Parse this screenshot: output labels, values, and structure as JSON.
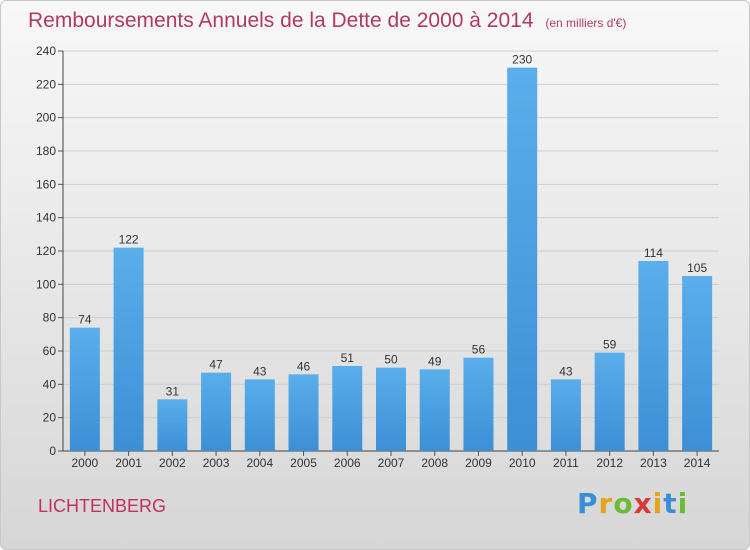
{
  "title": "Remboursements Annuels de la Dette de 2000 à 2014",
  "unit": "(en milliers d'€)",
  "location": "LICHTENBERG",
  "logo": "Proxiti",
  "colors": {
    "bar": "#3d8fd6",
    "bar_light": "#5aaeea",
    "title": "#b13a5e",
    "grid": "#cfcfcf"
  },
  "chart_data": {
    "type": "bar",
    "title": "Remboursements Annuels de la Dette de 2000 à 2014",
    "xlabel": "",
    "ylabel": "",
    "ylim": [
      0,
      240
    ],
    "yticks": [
      0,
      20,
      40,
      60,
      80,
      100,
      120,
      140,
      160,
      180,
      200,
      220,
      240
    ],
    "grid": true,
    "categories": [
      "2000",
      "2001",
      "2002",
      "2003",
      "2004",
      "2005",
      "2006",
      "2007",
      "2008",
      "2009",
      "2010",
      "2011",
      "2012",
      "2013",
      "2014"
    ],
    "values": [
      74,
      122,
      31,
      47,
      43,
      46,
      51,
      50,
      49,
      56,
      230,
      43,
      59,
      114,
      105
    ]
  }
}
